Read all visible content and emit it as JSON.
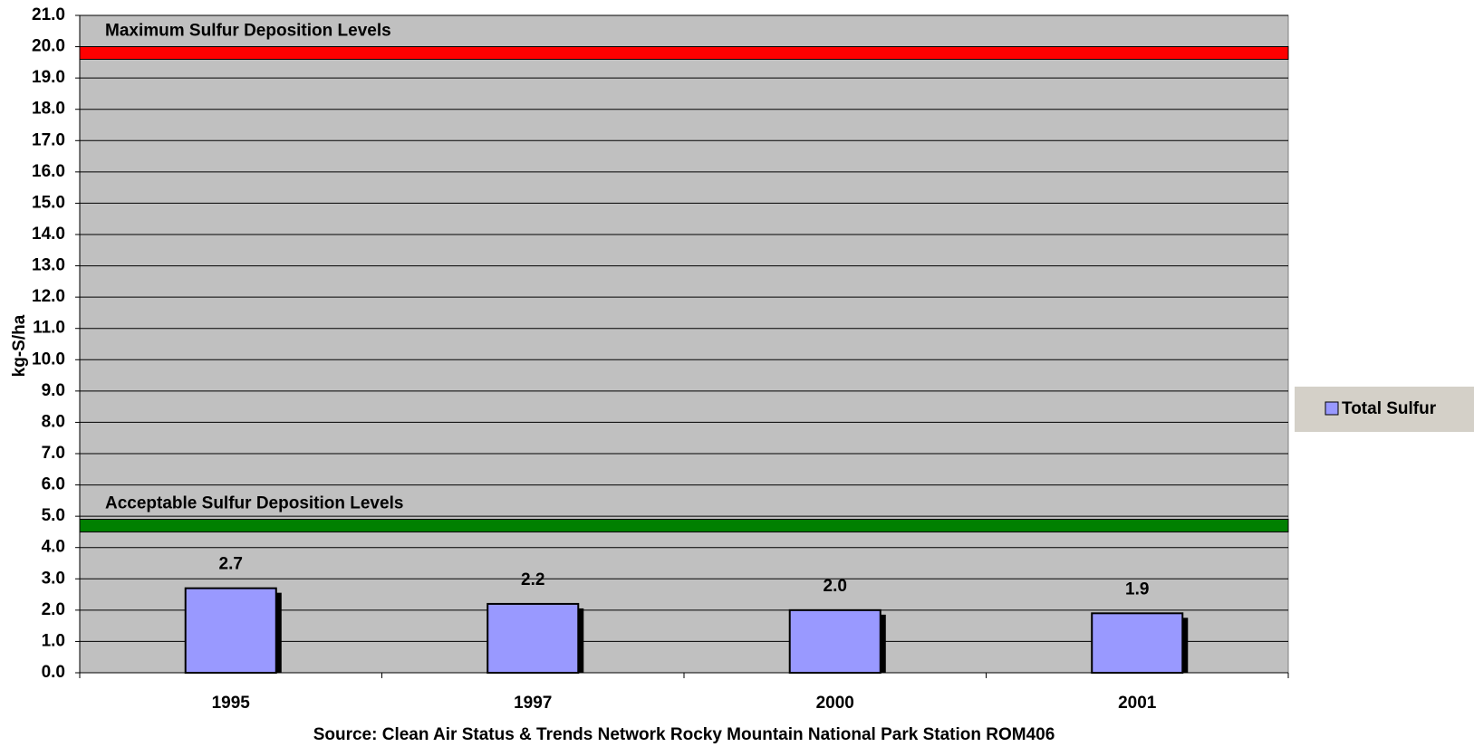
{
  "chart_data": {
    "type": "bar",
    "y_label": "kg-S/ha",
    "source": "Source: Clean Air Status & Trends Network Rocky Mountain National Park Station ROM406",
    "categories": [
      "1995",
      "1997",
      "2000",
      "2001"
    ],
    "series": [
      {
        "name": "Total Sulfur",
        "color": "#9999ff",
        "values": [
          2.7,
          2.2,
          2.0,
          1.9
        ],
        "value_labels": [
          "2.7",
          "2.2",
          "2.0",
          "1.9"
        ]
      }
    ],
    "reference_lines": [
      {
        "label": "Maximum Sulfur Deposition Levels",
        "value": 19.8,
        "color": "#ff0000"
      },
      {
        "label": "Acceptable Sulfur Deposition Levels",
        "value": 4.7,
        "color": "#008000"
      }
    ],
    "ylim": [
      0,
      21
    ],
    "yticks": [
      {
        "value": 0,
        "label": "0.0"
      },
      {
        "value": 1,
        "label": "1.0"
      },
      {
        "value": 2,
        "label": "2.0"
      },
      {
        "value": 3,
        "label": "3.0"
      },
      {
        "value": 4,
        "label": "4.0"
      },
      {
        "value": 5,
        "label": "5.0"
      },
      {
        "value": 6,
        "label": "6.0"
      },
      {
        "value": 7,
        "label": "7.0"
      },
      {
        "value": 8,
        "label": "8.0"
      },
      {
        "value": 9,
        "label": "9.0"
      },
      {
        "value": 10,
        "label": "10.0"
      },
      {
        "value": 11,
        "label": "11.0"
      },
      {
        "value": 12,
        "label": "12.0"
      },
      {
        "value": 13,
        "label": "13.0"
      },
      {
        "value": 14,
        "label": "14.0"
      },
      {
        "value": 15,
        "label": "15.0"
      },
      {
        "value": 16,
        "label": "16.0"
      },
      {
        "value": 17,
        "label": "17.0"
      },
      {
        "value": 18,
        "label": "18.0"
      },
      {
        "value": 19,
        "label": "19.0"
      },
      {
        "value": 20,
        "label": "20.0"
      },
      {
        "value": 21,
        "label": "21.0"
      }
    ],
    "grid": true,
    "plot_background": "#c0c0c0",
    "legend_position": "right"
  }
}
